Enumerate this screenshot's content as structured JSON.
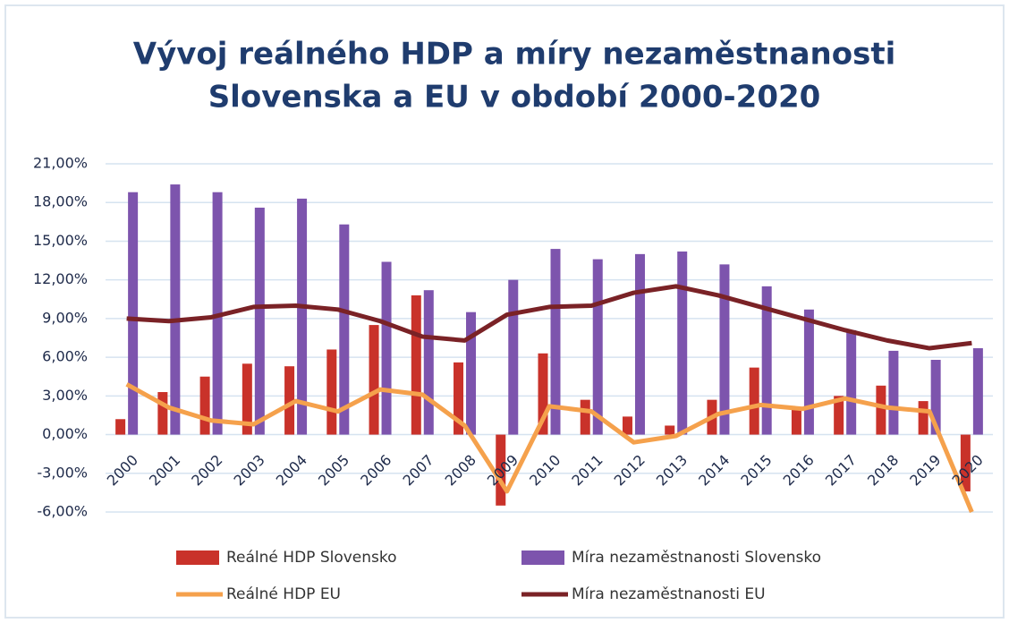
{
  "chart_data": {
    "type": "bar-line",
    "title": [
      "Vývoj reálného HDP a míry nezaměstnanosti",
      "Slovenska a EU v období 2000-2020"
    ],
    "categories": [
      "2000",
      "2001",
      "2002",
      "2003",
      "2004",
      "2005",
      "2006",
      "2007",
      "2008",
      "2009",
      "2010",
      "2011",
      "2012",
      "2013",
      "2014",
      "2015",
      "2016",
      "2017",
      "2018",
      "2019",
      "2020"
    ],
    "series": [
      {
        "name": "Reálné HDP Slovensko",
        "type": "bar",
        "color": "#c9322a",
        "values": [
          1.2,
          3.3,
          4.5,
          5.5,
          5.3,
          6.6,
          8.5,
          10.8,
          5.6,
          -5.5,
          6.3,
          2.7,
          1.4,
          0.7,
          2.7,
          5.2,
          2.0,
          3.0,
          3.8,
          2.6,
          -4.4
        ]
      },
      {
        "name": "Míra nezaměstnanosti Slovensko",
        "type": "bar",
        "color": "#7d54ad",
        "values": [
          18.8,
          19.4,
          18.8,
          17.6,
          18.3,
          16.3,
          13.4,
          11.2,
          9.5,
          12.0,
          14.4,
          13.6,
          14.0,
          14.2,
          13.2,
          11.5,
          9.7,
          8.1,
          6.5,
          5.8,
          6.7
        ]
      },
      {
        "name": "Reálné HDP EU",
        "type": "line",
        "color": "#f5a14c",
        "values": [
          3.9,
          2.1,
          1.1,
          0.8,
          2.6,
          1.8,
          3.5,
          3.1,
          0.7,
          -4.4,
          2.2,
          1.8,
          -0.6,
          -0.1,
          1.6,
          2.3,
          2.0,
          2.8,
          2.1,
          1.8,
          -6.0
        ]
      },
      {
        "name": "Míra nezaměstnanosti EU",
        "type": "line",
        "color": "#7a2226",
        "values": [
          9.0,
          8.8,
          9.1,
          9.9,
          10.0,
          9.7,
          8.8,
          7.6,
          7.3,
          9.3,
          9.9,
          10.0,
          11.0,
          11.5,
          10.8,
          9.9,
          9.0,
          8.1,
          7.3,
          6.7,
          7.1
        ]
      }
    ],
    "ylim": [
      -6,
      21
    ],
    "yticks": [
      {
        "value": -6,
        "label": "-6,00%"
      },
      {
        "value": -3,
        "label": "-3,00%"
      },
      {
        "value": 0,
        "label": "0,00%"
      },
      {
        "value": 3,
        "label": "3,00%"
      },
      {
        "value": 6,
        "label": "6,00%"
      },
      {
        "value": 9,
        "label": "9,00%"
      },
      {
        "value": 12,
        "label": "12,00%"
      },
      {
        "value": 15,
        "label": "15,00%"
      },
      {
        "value": 18,
        "label": "18,00%"
      },
      {
        "value": 21,
        "label": "21,00%"
      }
    ],
    "grid": true,
    "legend": "bottom"
  }
}
